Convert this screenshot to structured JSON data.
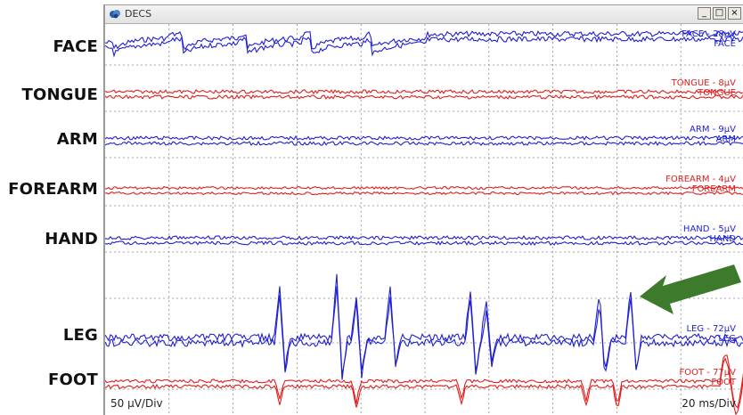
{
  "window": {
    "title": "DECS",
    "buttons": {
      "minimize": "_",
      "maximize": "□",
      "close": "×"
    }
  },
  "rows": [
    {
      "name": "FACE",
      "color": "#1f1fd6",
      "trace_label": "FACE - 28µV",
      "trace_name": "FACE"
    },
    {
      "name": "TONGUE",
      "color": "#e01e1e",
      "trace_label": "TONGUE - 8µV",
      "trace_name": "TONGUE"
    },
    {
      "name": "ARM",
      "color": "#1f1fd6",
      "trace_label": "ARM - 9µV",
      "trace_name": "ARM"
    },
    {
      "name": "FOREARM",
      "color": "#e01e1e",
      "trace_label": "FOREARM - 4µV",
      "trace_name": "FOREARM"
    },
    {
      "name": "HAND",
      "color": "#1f1fd6",
      "trace_label": "HAND - 5µV",
      "trace_name": "HAND"
    },
    {
      "name": "LEG",
      "color": "#1f1fd6",
      "trace_label": "LEG - 72µV",
      "trace_name": "LEG"
    },
    {
      "name": "FOOT",
      "color": "#e01e1e",
      "trace_label": "FOOT - 77µV",
      "trace_name": "FOOT"
    }
  ],
  "scale": {
    "amplitude": "50 µV/Div",
    "time": "20 ms/Div"
  },
  "annotation": {
    "type": "arrow",
    "color": "#3d7a2c",
    "points_to": "LEG"
  }
}
